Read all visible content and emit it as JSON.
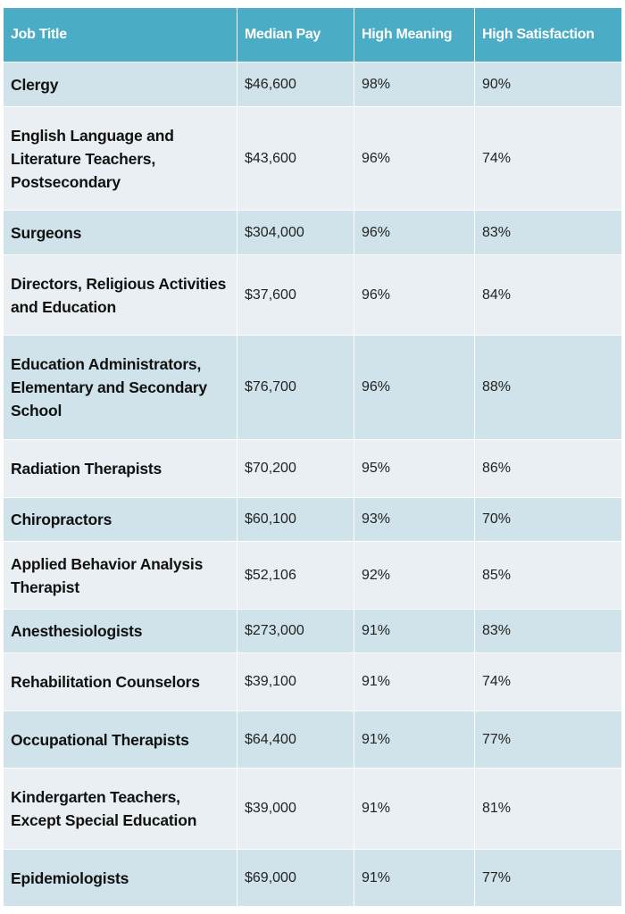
{
  "columns": [
    "Job Title",
    "Median Pay",
    "High Meaning",
    "High Satisfaction"
  ],
  "rows": [
    {
      "title": "Clergy",
      "pay": "$46,600",
      "meaning": "98%",
      "satisfaction": "90%"
    },
    {
      "title": "English Language and Literature Teachers, Postsecondary",
      "pay": "$43,600",
      "meaning": "96%",
      "satisfaction": "74%"
    },
    {
      "title": "Surgeons",
      "pay": "$304,000",
      "meaning": "96%",
      "satisfaction": "83%"
    },
    {
      "title": "Directors, Religious Activities and Education",
      "pay": "$37,600",
      "meaning": "96%",
      "satisfaction": "84%"
    },
    {
      "title": "Education Administrators, Elementary and Secondary School",
      "pay": "$76,700",
      "meaning": "96%",
      "satisfaction": "88%"
    },
    {
      "title": "Radiation Therapists",
      "pay": "$70,200",
      "meaning": "95%",
      "satisfaction": "86%"
    },
    {
      "title": "Chiropractors",
      "pay": "$60,100",
      "meaning": "93%",
      "satisfaction": "70%"
    },
    {
      "title": "Applied Behavior Analysis Therapist",
      "pay": "$52,106",
      "meaning": "92%",
      "satisfaction": "85%"
    },
    {
      "title": "Anesthesiologists",
      "pay": "$273,000",
      "meaning": "91%",
      "satisfaction": "83%"
    },
    {
      "title": "Rehabilitation Counselors",
      "pay": "$39,100",
      "meaning": "91%",
      "satisfaction": "74%"
    },
    {
      "title": "Occupational Therapists",
      "pay": "$64,400",
      "meaning": "91%",
      "satisfaction": "77%"
    },
    {
      "title": "Kindergarten Teachers, Except Special Education",
      "pay": "$39,000",
      "meaning": "91%",
      "satisfaction": "81%"
    },
    {
      "title": "Epidemiologists",
      "pay": "$69,000",
      "meaning": "91%",
      "satisfaction": "77%"
    }
  ],
  "colors": {
    "header": "#4bacc6",
    "row_dark": "#d0e3ea",
    "row_light": "#e9eff2"
  }
}
